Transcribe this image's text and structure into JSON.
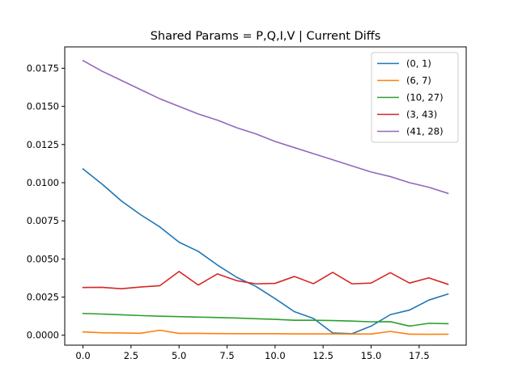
{
  "chart_data": {
    "type": "line",
    "title": "Shared Params = P,Q,I,V | Current Diffs",
    "xlabel": "",
    "ylabel": "",
    "xlim": [
      -0.95,
      19.95
    ],
    "ylim": [
      -0.00065,
      0.0189
    ],
    "x_ticks": [
      0.0,
      2.5,
      5.0,
      7.5,
      10.0,
      12.5,
      15.0,
      17.5
    ],
    "x_tick_labels": [
      "0.0",
      "2.5",
      "5.0",
      "7.5",
      "10.0",
      "12.5",
      "15.0",
      "17.5"
    ],
    "y_ticks": [
      0.0,
      0.0025,
      0.005,
      0.0075,
      0.01,
      0.0125,
      0.015,
      0.0175
    ],
    "y_tick_labels": [
      "0.0000",
      "0.0025",
      "0.0050",
      "0.0075",
      "0.0100",
      "0.0125",
      "0.0150",
      "0.0175"
    ],
    "grid": false,
    "legend_position": "top-right",
    "x": [
      0,
      1,
      2,
      3,
      4,
      5,
      6,
      7,
      8,
      9,
      10,
      11,
      12,
      13,
      14,
      15,
      16,
      17,
      18,
      19
    ],
    "series": [
      {
        "name": "(0, 1)",
        "color": "#1f77b4",
        "values": [
          0.0109,
          0.0099,
          0.0088,
          0.0079,
          0.0071,
          0.0061,
          0.0055,
          0.0046,
          0.0038,
          0.0032,
          0.0024,
          0.00155,
          0.0011,
          0.00015,
          0.0001,
          0.0006,
          0.00135,
          0.00165,
          0.0023,
          0.0027
        ]
      },
      {
        "name": "(6, 7)",
        "color": "#ff7f0e",
        "values": [
          0.00022,
          0.00016,
          0.00015,
          0.00013,
          0.00033,
          0.00012,
          0.00012,
          0.00011,
          0.0001,
          0.0001,
          0.0001,
          9e-05,
          9e-05,
          9e-05,
          8e-05,
          8e-05,
          0.00025,
          7e-05,
          6e-05,
          7e-05
        ]
      },
      {
        "name": "(10, 27)",
        "color": "#2ca02c",
        "values": [
          0.00143,
          0.00139,
          0.00134,
          0.00129,
          0.00125,
          0.00122,
          0.00119,
          0.00116,
          0.00113,
          0.00108,
          0.00104,
          0.00098,
          0.00098,
          0.00096,
          0.00093,
          0.00088,
          0.00089,
          0.0006,
          0.00078,
          0.00076
        ]
      },
      {
        "name": "(3, 43)",
        "color": "#d62728",
        "values": [
          0.00313,
          0.00314,
          0.00305,
          0.00316,
          0.00325,
          0.00418,
          0.00329,
          0.00402,
          0.00358,
          0.00337,
          0.0034,
          0.00385,
          0.00338,
          0.00412,
          0.00337,
          0.00342,
          0.0041,
          0.00342,
          0.00376,
          0.00334
        ]
      },
      {
        "name": "(41, 28)",
        "color": "#9467bd",
        "values": [
          0.018,
          0.0173,
          0.0167,
          0.0161,
          0.0155,
          0.015,
          0.0145,
          0.0141,
          0.0136,
          0.0132,
          0.0127,
          0.0123,
          0.0119,
          0.0115,
          0.0111,
          0.0107,
          0.0104,
          0.01,
          0.0097,
          0.0093
        ]
      }
    ]
  }
}
